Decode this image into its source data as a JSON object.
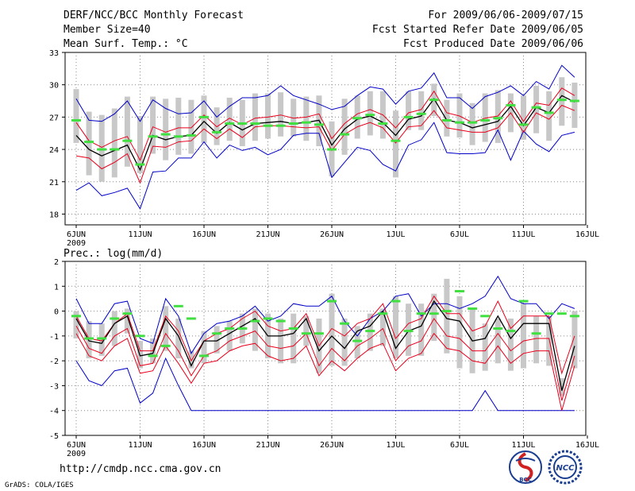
{
  "header": {
    "title": "DERF/NCC/BCC Monthly Forecast",
    "member_size": "Member Size=40",
    "variable": "Mean Surf. Temp.: °C",
    "period": "For 2009/06/06-2009/07/15",
    "refer_date": "Fcst Started Refer Date 2009/06/05",
    "produced_date": "Fcst Produced Date 2009/06/06"
  },
  "footer": {
    "url": "http://cmdp.ncc.cma.gov.cn",
    "credit": "GrADS: COLA/IGES",
    "logo_left": "BCC",
    "logo_right": "NCC"
  },
  "colors": {
    "ensemble_mean": "#000000",
    "spread": "#e8001c",
    "extremes": "#0000c8",
    "box": "#c8c8c8",
    "observation": "#40e040"
  },
  "chart_data": [
    {
      "type": "line",
      "title": "Mean Surf. Temp.: °C",
      "ylabel": "°C",
      "ylim": [
        17,
        33
      ],
      "yticks": [
        18,
        21,
        24,
        27,
        30,
        33
      ],
      "xlabels": [
        "6JUN",
        "11JUN",
        "16JUN",
        "21JUN",
        "26JUN",
        "1JUL",
        "6JUL",
        "11JUL",
        "16JUL"
      ],
      "xsub": "2009",
      "x": [
        1,
        2,
        3,
        4,
        5,
        6,
        7,
        8,
        9,
        10,
        11,
        12,
        13,
        14,
        15,
        16,
        17,
        18,
        19,
        20,
        21,
        22,
        23,
        24,
        25,
        26,
        27,
        28,
        29,
        30,
        31,
        32,
        33,
        34,
        35,
        36,
        37,
        38,
        39,
        40
      ],
      "series": [
        {
          "name": "max",
          "values": [
            28.7,
            26.7,
            26.6,
            27.3,
            28.5,
            26.6,
            28.6,
            27.8,
            27.3,
            27.4,
            28.5,
            27.0,
            28.0,
            28.8,
            28.8,
            29.0,
            29.9,
            29.0,
            28.6,
            28.2,
            27.7,
            28.0,
            29.0,
            29.8,
            29.6,
            28.2,
            29.4,
            29.7,
            31.1,
            28.8,
            28.8,
            27.8,
            28.9,
            29.3,
            29.9,
            29.0,
            30.3,
            29.6,
            31.8,
            30.7
          ]
        },
        {
          "name": "p75",
          "values": [
            26.5,
            24.8,
            24.2,
            24.8,
            25.2,
            23.0,
            26.1,
            25.6,
            26.0,
            26.0,
            27.2,
            26.1,
            26.9,
            26.3,
            26.9,
            27.0,
            27.2,
            26.9,
            27.0,
            27.3,
            25.0,
            26.4,
            27.3,
            27.7,
            27.2,
            26.0,
            27.4,
            27.7,
            29.4,
            27.4,
            27.1,
            26.5,
            26.9,
            27.1,
            28.5,
            26.6,
            28.3,
            28.1,
            29.7,
            29.0
          ]
        },
        {
          "name": "mean",
          "values": [
            25.3,
            24.0,
            23.4,
            23.9,
            24.4,
            22.1,
            25.3,
            24.9,
            25.2,
            25.3,
            26.6,
            25.5,
            26.5,
            25.8,
            26.4,
            26.5,
            26.6,
            26.4,
            26.5,
            26.7,
            24.4,
            25.9,
            26.8,
            27.1,
            26.5,
            25.3,
            26.8,
            27.1,
            28.7,
            26.7,
            26.5,
            26.0,
            26.3,
            26.6,
            28.0,
            26.2,
            27.9,
            27.4,
            29.0,
            28.4
          ]
        },
        {
          "name": "p25",
          "values": [
            23.4,
            23.2,
            22.2,
            22.8,
            23.6,
            20.9,
            24.3,
            24.2,
            24.7,
            24.8,
            25.9,
            25.0,
            25.9,
            25.1,
            26.1,
            26.2,
            26.2,
            26.1,
            26.0,
            26.1,
            23.9,
            25.4,
            26.1,
            26.5,
            26.0,
            24.6,
            26.1,
            26.2,
            27.6,
            26.0,
            25.8,
            25.6,
            25.6,
            26.0,
            27.4,
            25.6,
            27.4,
            26.8,
            28.1,
            27.6
          ]
        },
        {
          "name": "min",
          "values": [
            20.2,
            20.9,
            19.7,
            20.0,
            20.4,
            18.5,
            21.9,
            22.0,
            23.2,
            23.2,
            24.7,
            23.2,
            24.4,
            23.9,
            24.2,
            23.5,
            24.0,
            25.3,
            25.5,
            25.5,
            21.4,
            22.8,
            24.2,
            23.9,
            22.6,
            22.0,
            24.4,
            24.9,
            26.5,
            23.7,
            23.6,
            23.6,
            23.7,
            25.8,
            23.0,
            25.7,
            24.5,
            23.8,
            25.3,
            25.6
          ]
        },
        {
          "name": "obs",
          "values": [
            26.7,
            24.7,
            24.0,
            24.0,
            24.8,
            22.6,
            25.2,
            25.4,
            25.2,
            25.3,
            27.0,
            25.6,
            26.4,
            26.4,
            26.4,
            26.2,
            26.2,
            26.4,
            26.5,
            26.3,
            24.0,
            25.4,
            26.9,
            27.2,
            26.4,
            24.8,
            27.0,
            27.3,
            28.6,
            26.7,
            26.5,
            26.5,
            26.7,
            26.9,
            28.1,
            26.3,
            27.9,
            27.4,
            28.6,
            28.5
          ]
        },
        {
          "name": "box_high",
          "values": [
            29.6,
            27.5,
            27.2,
            27.8,
            28.9,
            27.1,
            28.9,
            28.7,
            28.8,
            28.6,
            29.0,
            27.9,
            28.8,
            28.6,
            29.2,
            29.2,
            29.3,
            28.7,
            28.9,
            29.0,
            26.6,
            28.7,
            29.0,
            29.4,
            29.4,
            27.6,
            29.4,
            29.4,
            30.1,
            28.6,
            29.2,
            28.3,
            29.2,
            29.5,
            29.2,
            29.0,
            29.9,
            29.4,
            30.7,
            30.2
          ]
        },
        {
          "name": "box_low",
          "values": [
            24.6,
            21.6,
            21.0,
            21.4,
            22.4,
            21.8,
            23.6,
            23.0,
            23.5,
            23.6,
            24.6,
            24.4,
            24.8,
            24.3,
            24.8,
            25.0,
            25.2,
            25.2,
            24.8,
            24.3,
            21.5,
            23.5,
            25.0,
            25.3,
            25.0,
            21.4,
            25.8,
            25.8,
            27.1,
            25.2,
            25.1,
            24.4,
            24.7,
            24.6,
            25.6,
            24.9,
            25.5,
            24.8,
            26.2,
            26.0
          ]
        }
      ]
    },
    {
      "type": "line",
      "title": "Prec.: log(mm/d)",
      "ylabel": "log(mm/d)",
      "ylim": [
        -5,
        2
      ],
      "yticks": [
        -5,
        -4,
        -3,
        -2,
        -1,
        0,
        1,
        2
      ],
      "xlabels": [
        "6JUN",
        "11JUN",
        "16JUN",
        "21JUN",
        "26JUN",
        "1JUL",
        "6JUL",
        "11JUL",
        "16JUL"
      ],
      "xsub": "2009",
      "x": [
        1,
        2,
        3,
        4,
        5,
        6,
        7,
        8,
        9,
        10,
        11,
        12,
        13,
        14,
        15,
        16,
        17,
        18,
        19,
        20,
        21,
        22,
        23,
        24,
        25,
        26,
        27,
        28,
        29,
        30,
        31,
        32,
        33,
        34,
        35,
        36,
        37,
        38,
        39,
        40
      ],
      "series": [
        {
          "name": "max",
          "values": [
            0.5,
            -0.5,
            -0.5,
            0.3,
            0.4,
            -1.1,
            -1.3,
            0.5,
            -0.2,
            -1.7,
            -0.9,
            -0.5,
            -0.4,
            -0.2,
            0.2,
            -0.4,
            -0.2,
            0.3,
            0.2,
            0.2,
            0.6,
            -0.4,
            -1.0,
            -0.3,
            0.0,
            0.6,
            0.7,
            -0.2,
            0.3,
            0.3,
            0.1,
            0.3,
            0.6,
            1.4,
            0.5,
            0.3,
            0.3,
            -0.3,
            0.3,
            0.1
          ]
        },
        {
          "name": "p75",
          "values": [
            -0.2,
            -1.1,
            -1.2,
            -0.5,
            -0.1,
            -1.6,
            -1.6,
            -0.2,
            -0.8,
            -2.0,
            -1.2,
            -0.9,
            -0.7,
            -0.3,
            0.0,
            -0.6,
            -0.8,
            -0.7,
            -0.1,
            -1.4,
            -0.7,
            -1.0,
            -0.5,
            -0.3,
            0.3,
            -1.1,
            -0.5,
            -0.3,
            0.6,
            -0.1,
            -0.1,
            -0.8,
            -0.6,
            0.4,
            -0.7,
            -0.2,
            -0.2,
            -0.2,
            -2.5,
            -1.0
          ]
        },
        {
          "name": "mean",
          "values": [
            -0.3,
            -1.2,
            -1.3,
            -0.5,
            -0.2,
            -1.8,
            -1.7,
            -0.3,
            -1.0,
            -2.2,
            -1.2,
            -1.2,
            -0.9,
            -0.6,
            -0.3,
            -1.0,
            -1.0,
            -0.9,
            -0.3,
            -1.6,
            -1.0,
            -1.5,
            -0.8,
            -0.6,
            0.0,
            -1.5,
            -0.8,
            -0.6,
            0.4,
            -0.3,
            -0.4,
            -1.2,
            -1.1,
            -0.2,
            -1.1,
            -0.5,
            -0.5,
            -0.5,
            -3.2,
            -1.4
          ]
        },
        {
          "name": "p25",
          "values": [
            -0.6,
            -1.5,
            -1.7,
            -1.0,
            -0.7,
            -2.2,
            -2.1,
            -0.9,
            -1.6,
            -2.6,
            -1.8,
            -1.6,
            -1.2,
            -1.0,
            -0.8,
            -1.4,
            -1.5,
            -1.4,
            -0.9,
            -2.2,
            -1.5,
            -2.0,
            -1.4,
            -1.1,
            -0.7,
            -2.0,
            -1.4,
            -1.2,
            -0.3,
            -1.0,
            -1.1,
            -1.6,
            -1.6,
            -0.9,
            -1.6,
            -1.2,
            -1.1,
            -1.1,
            -3.6,
            -1.8
          ]
        },
        {
          "name": "p10",
          "values": [
            -0.9,
            -1.8,
            -2.0,
            -1.4,
            -1.1,
            -2.5,
            -2.4,
            -1.4,
            -2.1,
            -2.9,
            -2.1,
            -2.0,
            -1.6,
            -1.4,
            -1.3,
            -1.8,
            -2.0,
            -1.9,
            -1.4,
            -2.6,
            -2.0,
            -2.4,
            -1.9,
            -1.5,
            -1.3,
            -2.4,
            -1.9,
            -1.7,
            -0.9,
            -1.5,
            -1.6,
            -2.0,
            -2.1,
            -1.4,
            -2.1,
            -1.7,
            -1.6,
            -1.6,
            -4.0,
            -2.2
          ]
        },
        {
          "name": "min",
          "values": [
            -2.0,
            -2.8,
            -3.0,
            -2.4,
            -2.3,
            -3.7,
            -3.3,
            -1.9,
            -3.0,
            -4.0,
            -4.0,
            -4.0,
            -4.0,
            -4.0,
            -4.0,
            -4.0,
            -4.0,
            -4.0,
            -4.0,
            -4.0,
            -4.0,
            -4.0,
            -4.0,
            -4.0,
            -4.0,
            -4.0,
            -4.0,
            -4.0,
            -4.0,
            -4.0,
            -4.0,
            -4.0,
            -3.2,
            -4.0,
            -4.0,
            -4.0,
            -4.0,
            -4.0,
            -4.0,
            -4.0
          ]
        },
        {
          "name": "obs",
          "values": [
            -0.2,
            -1.1,
            -1.1,
            -0.3,
            -0.1,
            -1.0,
            -1.8,
            -1.4,
            0.2,
            -0.3,
            -1.8,
            -0.9,
            -0.7,
            -0.7,
            -0.4,
            -0.3,
            -0.4,
            -0.7,
            -0.9,
            -0.9,
            0.4,
            -0.5,
            -1.2,
            -0.8,
            -0.1,
            0.4,
            -0.8,
            -0.1,
            -0.1,
            0.0,
            0.8,
            0.1,
            -0.2,
            -0.7,
            -0.8,
            0.4,
            -0.9,
            -0.1,
            -0.1,
            -0.2
          ]
        },
        {
          "name": "box_high",
          "values": [
            0.0,
            -0.4,
            -0.5,
            0.0,
            0.1,
            -1.2,
            -1.1,
            0.2,
            -0.3,
            -1.6,
            -0.8,
            -0.6,
            -0.4,
            -0.1,
            0.1,
            -0.1,
            -0.3,
            -0.1,
            -0.2,
            -0.3,
            0.7,
            -0.3,
            -0.6,
            -0.1,
            0.1,
            0.6,
            0.3,
            0.3,
            0.7,
            1.3,
            0.6,
            0.1,
            -0.5,
            -0.3,
            -0.3,
            0.3,
            -0.2,
            -0.2,
            -2.7,
            0.0
          ]
        },
        {
          "name": "box_low",
          "values": [
            -1.1,
            -1.9,
            -1.8,
            -1.4,
            -0.9,
            -2.3,
            -2.1,
            -1.6,
            -1.9,
            -2.3,
            -2.1,
            -1.7,
            -1.6,
            -1.3,
            -1.6,
            -1.9,
            -2.1,
            -2.1,
            -1.4,
            -2.5,
            -2.2,
            -2.2,
            -1.9,
            -1.6,
            -1.4,
            -1.9,
            -1.8,
            -1.8,
            -1.2,
            -1.7,
            -2.3,
            -2.5,
            -2.4,
            -2.1,
            -2.4,
            -2.3,
            -2.1,
            -2.2,
            -3.4,
            -2.3
          ]
        }
      ]
    }
  ]
}
